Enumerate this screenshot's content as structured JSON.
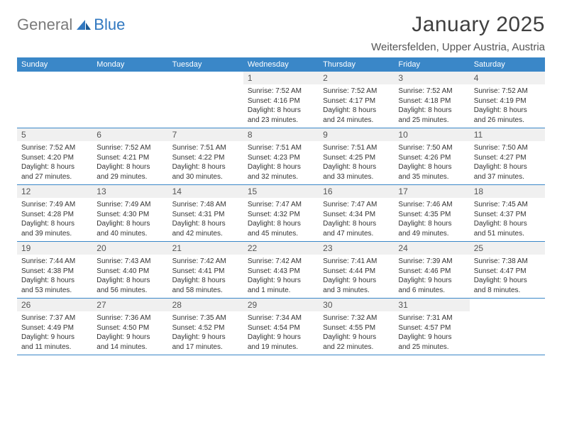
{
  "logo": {
    "general": "General",
    "blue": "Blue"
  },
  "title": "January 2025",
  "location": "Weitersfelden, Upper Austria, Austria",
  "colors": {
    "header_bg": "#3a87c8",
    "header_text": "#ffffff",
    "daynum_bg": "#f0f0f0",
    "body_text": "#333333",
    "title_text": "#404040",
    "border": "#3a87c8"
  },
  "weekdays": [
    "Sunday",
    "Monday",
    "Tuesday",
    "Wednesday",
    "Thursday",
    "Friday",
    "Saturday"
  ],
  "weeks": [
    [
      null,
      null,
      null,
      {
        "n": "1",
        "sunrise": "7:52 AM",
        "sunset": "4:16 PM",
        "dh": "8",
        "dm": "23"
      },
      {
        "n": "2",
        "sunrise": "7:52 AM",
        "sunset": "4:17 PM",
        "dh": "8",
        "dm": "24"
      },
      {
        "n": "3",
        "sunrise": "7:52 AM",
        "sunset": "4:18 PM",
        "dh": "8",
        "dm": "25"
      },
      {
        "n": "4",
        "sunrise": "7:52 AM",
        "sunset": "4:19 PM",
        "dh": "8",
        "dm": "26"
      }
    ],
    [
      {
        "n": "5",
        "sunrise": "7:52 AM",
        "sunset": "4:20 PM",
        "dh": "8",
        "dm": "27"
      },
      {
        "n": "6",
        "sunrise": "7:52 AM",
        "sunset": "4:21 PM",
        "dh": "8",
        "dm": "29"
      },
      {
        "n": "7",
        "sunrise": "7:51 AM",
        "sunset": "4:22 PM",
        "dh": "8",
        "dm": "30"
      },
      {
        "n": "8",
        "sunrise": "7:51 AM",
        "sunset": "4:23 PM",
        "dh": "8",
        "dm": "32"
      },
      {
        "n": "9",
        "sunrise": "7:51 AM",
        "sunset": "4:25 PM",
        "dh": "8",
        "dm": "33"
      },
      {
        "n": "10",
        "sunrise": "7:50 AM",
        "sunset": "4:26 PM",
        "dh": "8",
        "dm": "35"
      },
      {
        "n": "11",
        "sunrise": "7:50 AM",
        "sunset": "4:27 PM",
        "dh": "8",
        "dm": "37"
      }
    ],
    [
      {
        "n": "12",
        "sunrise": "7:49 AM",
        "sunset": "4:28 PM",
        "dh": "8",
        "dm": "39"
      },
      {
        "n": "13",
        "sunrise": "7:49 AM",
        "sunset": "4:30 PM",
        "dh": "8",
        "dm": "40"
      },
      {
        "n": "14",
        "sunrise": "7:48 AM",
        "sunset": "4:31 PM",
        "dh": "8",
        "dm": "42"
      },
      {
        "n": "15",
        "sunrise": "7:47 AM",
        "sunset": "4:32 PM",
        "dh": "8",
        "dm": "45"
      },
      {
        "n": "16",
        "sunrise": "7:47 AM",
        "sunset": "4:34 PM",
        "dh": "8",
        "dm": "47"
      },
      {
        "n": "17",
        "sunrise": "7:46 AM",
        "sunset": "4:35 PM",
        "dh": "8",
        "dm": "49"
      },
      {
        "n": "18",
        "sunrise": "7:45 AM",
        "sunset": "4:37 PM",
        "dh": "8",
        "dm": "51"
      }
    ],
    [
      {
        "n": "19",
        "sunrise": "7:44 AM",
        "sunset": "4:38 PM",
        "dh": "8",
        "dm": "53"
      },
      {
        "n": "20",
        "sunrise": "7:43 AM",
        "sunset": "4:40 PM",
        "dh": "8",
        "dm": "56"
      },
      {
        "n": "21",
        "sunrise": "7:42 AM",
        "sunset": "4:41 PM",
        "dh": "8",
        "dm": "58"
      },
      {
        "n": "22",
        "sunrise": "7:42 AM",
        "sunset": "4:43 PM",
        "dh": "9",
        "dm": "1",
        "singular": true
      },
      {
        "n": "23",
        "sunrise": "7:41 AM",
        "sunset": "4:44 PM",
        "dh": "9",
        "dm": "3"
      },
      {
        "n": "24",
        "sunrise": "7:39 AM",
        "sunset": "4:46 PM",
        "dh": "9",
        "dm": "6"
      },
      {
        "n": "25",
        "sunrise": "7:38 AM",
        "sunset": "4:47 PM",
        "dh": "9",
        "dm": "8"
      }
    ],
    [
      {
        "n": "26",
        "sunrise": "7:37 AM",
        "sunset": "4:49 PM",
        "dh": "9",
        "dm": "11"
      },
      {
        "n": "27",
        "sunrise": "7:36 AM",
        "sunset": "4:50 PM",
        "dh": "9",
        "dm": "14"
      },
      {
        "n": "28",
        "sunrise": "7:35 AM",
        "sunset": "4:52 PM",
        "dh": "9",
        "dm": "17"
      },
      {
        "n": "29",
        "sunrise": "7:34 AM",
        "sunset": "4:54 PM",
        "dh": "9",
        "dm": "19"
      },
      {
        "n": "30",
        "sunrise": "7:32 AM",
        "sunset": "4:55 PM",
        "dh": "9",
        "dm": "22"
      },
      {
        "n": "31",
        "sunrise": "7:31 AM",
        "sunset": "4:57 PM",
        "dh": "9",
        "dm": "25"
      },
      null
    ]
  ],
  "labels": {
    "sunrise": "Sunrise:",
    "sunset": "Sunset:",
    "daylight": "Daylight:",
    "hours": "hours",
    "and": "and",
    "minute": "minute.",
    "minutes": "minutes."
  }
}
